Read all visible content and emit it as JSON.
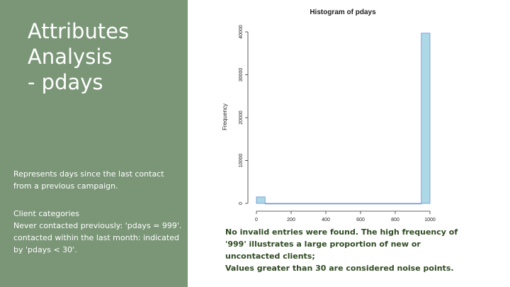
{
  "slide": {
    "title_lines": [
      "Attributes",
      "Analysis",
      "- pdays"
    ],
    "description": "Represents days since the last contact from a previous campaign.",
    "categories_heading": "Client categories",
    "categories": [
      "Never contacted previously: 'pdays = 999'.",
      "contacted within the last month: indicated by 'pdays < 30'."
    ],
    "note_lines": [
      "No invalid entries were found. The high frequency of '999' illustrates a large proportion of new or uncontacted clients;",
      "Values greater than 30 are considered noise points."
    ],
    "colors": {
      "panel": "#7a9677",
      "bar_fill": "#add8e6",
      "bar_stroke": "#6a8fd8",
      "note_text": "#2f4a22"
    }
  },
  "chart_data": {
    "type": "bar",
    "title": "Histogram of pdays",
    "xlabel": "",
    "ylabel": "Frequency",
    "x_ticks": [
      0,
      200,
      400,
      600,
      800,
      1000
    ],
    "y_ticks": [
      0,
      10000,
      20000,
      30000,
      40000
    ],
    "xlim": [
      -20,
      1000
    ],
    "ylim": [
      0,
      40000
    ],
    "bins": [
      {
        "from": 0,
        "to": 50,
        "value": 1500
      },
      {
        "from": 50,
        "to": 950,
        "value": 0
      },
      {
        "from": 950,
        "to": 1000,
        "value": 39700
      }
    ]
  }
}
